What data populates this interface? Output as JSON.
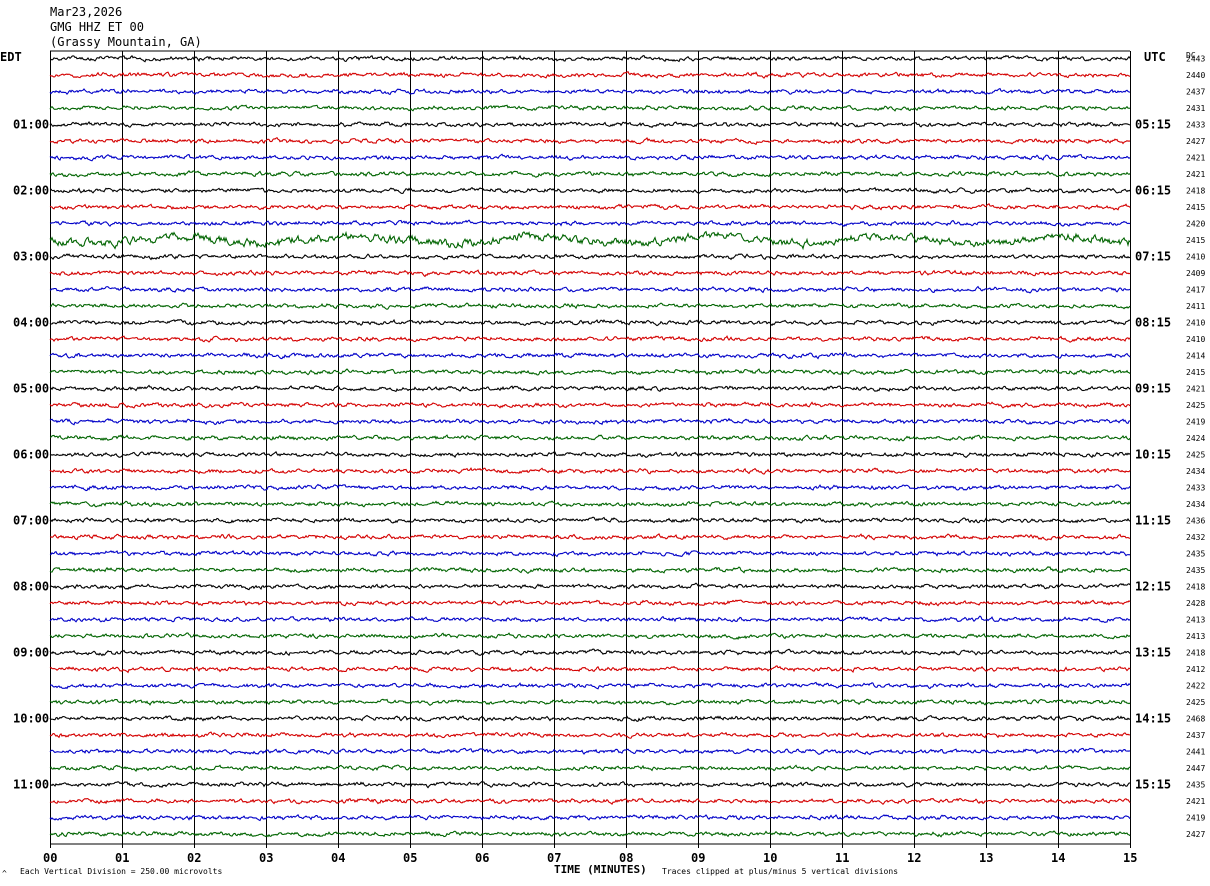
{
  "header": {
    "date": "Mar23,2026",
    "station": "GMG HHZ ET 00",
    "location": "(Grassy Mountain, GA)"
  },
  "left_zone": "EDT",
  "right_zone": "UTC",
  "dc_header": "DC",
  "footer": {
    "vertical_division": "Each Vertical Division =  250.00 microvolts",
    "xlabel": "TIME (MINUTES)",
    "clip_note": "Traces clipped at plus/minus 5 vertical divisions",
    "corner_mark": "^"
  },
  "colors": [
    "#000000",
    "#d40000",
    "#0000c8",
    "#006400"
  ],
  "chart_data": {
    "type": "line",
    "title": "GMG HHZ ET 00",
    "xlabel": "TIME (MINUTES)",
    "xlim": [
      0,
      15
    ],
    "x_ticks": [
      "00",
      "01",
      "02",
      "03",
      "04",
      "05",
      "06",
      "07",
      "08",
      "09",
      "10",
      "11",
      "12",
      "13",
      "14",
      "15"
    ],
    "traces_per_hour": 4,
    "trace_minutes": 15,
    "left_hour_labels": [
      "01:00",
      "02:00",
      "03:00",
      "04:00",
      "05:00",
      "06:00",
      "07:00",
      "08:00",
      "09:00",
      "10:00",
      "11:00"
    ],
    "right_hour_labels": [
      "05:15",
      "06:15",
      "07:15",
      "08:15",
      "09:15",
      "10:15",
      "11:15",
      "12:15",
      "13:15",
      "14:15",
      "15:15"
    ],
    "dc_offsets": [
      2443,
      2440,
      2437,
      2431,
      2433,
      2427,
      2421,
      2421,
      2418,
      2415,
      2420,
      2415,
      2410,
      2409,
      2417,
      2411,
      2410,
      2410,
      2414,
      2415,
      2421,
      2425,
      2419,
      2424,
      2425,
      2434,
      2433,
      2434,
      2436,
      2432,
      2435,
      2435,
      2418,
      2428,
      2413,
      2413,
      2418,
      2412,
      2422,
      2425,
      2468,
      2437,
      2441,
      2447,
      2435,
      2421,
      2419,
      2427
    ],
    "emphasized_traces": [
      11
    ]
  }
}
